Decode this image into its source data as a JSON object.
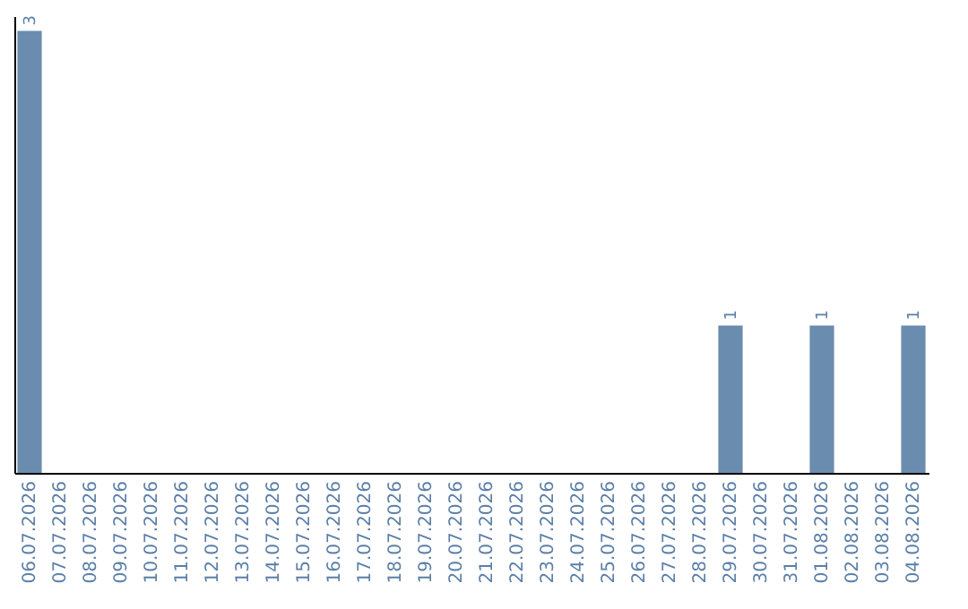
{
  "chart_data": {
    "type": "bar",
    "categories": [
      "06.07.2026",
      "07.07.2026",
      "08.07.2026",
      "09.07.2026",
      "10.07.2026",
      "11.07.2026",
      "12.07.2026",
      "13.07.2026",
      "14.07.2026",
      "15.07.2026",
      "16.07.2026",
      "17.07.2026",
      "18.07.2026",
      "19.07.2026",
      "20.07.2026",
      "21.07.2026",
      "22.07.2026",
      "23.07.2026",
      "24.07.2026",
      "25.07.2026",
      "26.07.2026",
      "27.07.2026",
      "28.07.2026",
      "29.07.2026",
      "30.07.2026",
      "31.07.2026",
      "01.08.2026",
      "02.08.2026",
      "03.08.2026",
      "04.08.2026"
    ],
    "values": [
      3,
      0,
      0,
      0,
      0,
      0,
      0,
      0,
      0,
      0,
      0,
      0,
      0,
      0,
      0,
      0,
      0,
      0,
      0,
      0,
      0,
      0,
      0,
      1,
      0,
      0,
      1,
      0,
      0,
      1
    ],
    "value_labels": [
      "3",
      null,
      null,
      null,
      null,
      null,
      null,
      null,
      null,
      null,
      null,
      null,
      null,
      null,
      null,
      null,
      null,
      null,
      null,
      null,
      null,
      null,
      null,
      "1",
      null,
      null,
      "1",
      null,
      null,
      "1"
    ],
    "color": "#6a8caf",
    "ylim": [
      0,
      3.1
    ],
    "tick_labels": "x"
  }
}
